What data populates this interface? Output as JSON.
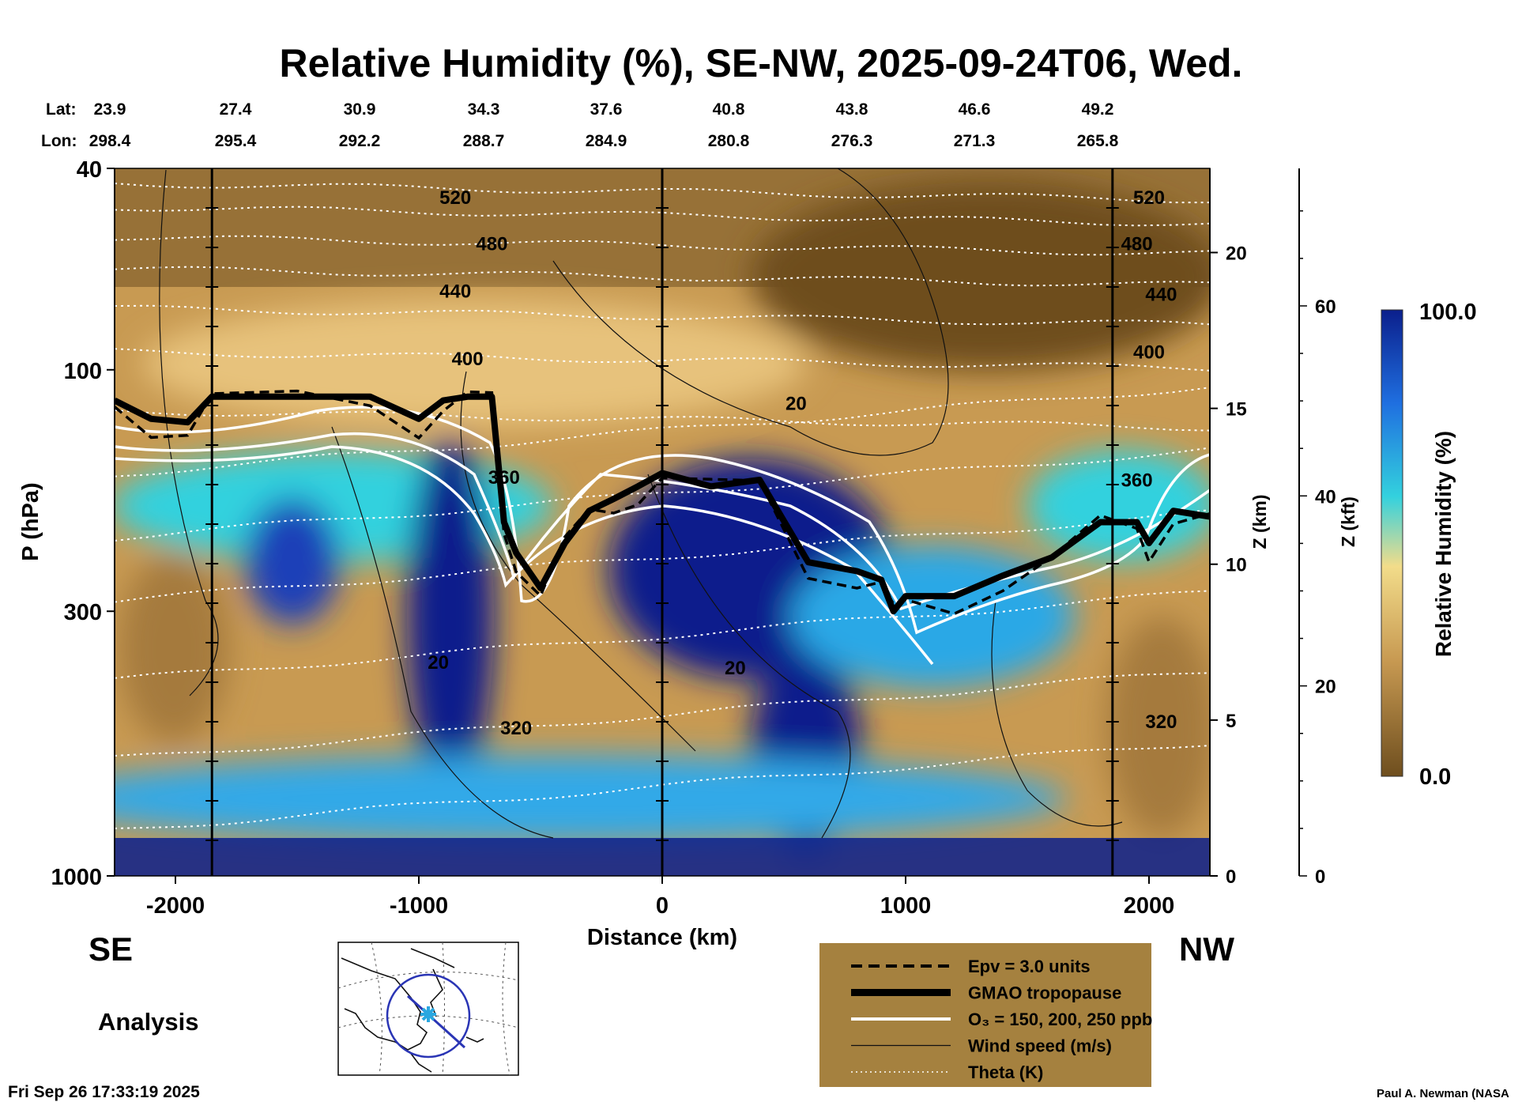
{
  "colors": {
    "rh_dry": "#6e4e1e",
    "rh_tan": "#c89a52",
    "rh_light": "#e7c27b",
    "rh_cyan": "#33d1de",
    "rh_mid": "#1f6fe0",
    "rh_wet": "#0b1f8c",
    "legend_bg": "#a5813f",
    "map_circle": "#2a35b5",
    "map_marker": "#2aa7e0"
  },
  "header": {
    "title": "Relative Humidity (%), SE-NW, 2025-09-24T06, Wed.",
    "lat_label": "Lat:",
    "lon_label": "Lon:",
    "lat": [
      "23.9",
      "27.4",
      "30.9",
      "34.3",
      "37.6",
      "40.8",
      "43.8",
      "46.6",
      "49.2"
    ],
    "lon": [
      "298.4",
      "295.4",
      "292.2",
      "288.7",
      "284.9",
      "280.8",
      "276.3",
      "271.3",
      "265.8"
    ]
  },
  "footer": {
    "left_dir": "SE",
    "right_dir": "NW",
    "analysis": "Analysis",
    "timestamp": "Fri Sep 26 17:33:19 2025",
    "credit": "Paul A. Newman (NASA"
  },
  "legend": {
    "items": [
      {
        "label": "Epv = 3.0 units",
        "style": "dashed"
      },
      {
        "label": "GMAO tropopause",
        "style": "thick"
      },
      {
        "label": "O₃ = 150, 200, 250 ppb",
        "style": "white"
      },
      {
        "label": "Wind speed (m/s)",
        "style": "thin"
      },
      {
        "label": "Theta (K)",
        "style": "dotted"
      }
    ]
  },
  "colorbar": {
    "label": "Relative Humidity (%)",
    "max_label": "100.0",
    "min_label": "0.0"
  },
  "chart_data": {
    "type": "heatmap",
    "title": "Relative Humidity (%), SE-NW, 2025-09-24T06, Wed.",
    "xlabel": "Distance (km)",
    "ylabel": "P (hPa)",
    "y2label": "Z (km)",
    "y3label": "Z (kft)",
    "xlim": [
      -2250,
      2250
    ],
    "ylim": [
      1000,
      40
    ],
    "y_scale": "log",
    "x_ticks": [
      -2000,
      -1000,
      0,
      1000,
      2000
    ],
    "y_ticks": [
      1000,
      300,
      100,
      40
    ],
    "z_km_ticks": [
      0,
      5,
      10,
      15,
      20
    ],
    "z_kft_ticks": [
      0,
      20,
      40,
      60
    ],
    "vertical_markers_km": [
      -1850,
      0,
      1850
    ],
    "colorbar_range": [
      0,
      100
    ],
    "tropopause_hpa": {
      "x": [
        -2250,
        -2100,
        -1950,
        -1850,
        -1500,
        -1200,
        -1000,
        -900,
        -800,
        -700,
        -650,
        -600,
        -500,
        -400,
        -300,
        -200,
        -100,
        0,
        200,
        400,
        600,
        800,
        900,
        950,
        1000,
        1200,
        1400,
        1600,
        1800,
        1950,
        2000,
        2100,
        2250
      ],
      "y": [
        115,
        125,
        127,
        113,
        113,
        113,
        125,
        115,
        113,
        113,
        200,
        230,
        270,
        220,
        190,
        180,
        170,
        160,
        170,
        165,
        240,
        250,
        260,
        300,
        280,
        280,
        255,
        235,
        200,
        200,
        220,
        190,
        195
      ]
    },
    "theta_labels": [
      {
        "value": "520",
        "x": -850,
        "p": 47
      },
      {
        "value": "480",
        "x": -700,
        "p": 58
      },
      {
        "value": "440",
        "x": -850,
        "p": 72
      },
      {
        "value": "400",
        "x": -800,
        "p": 98
      },
      {
        "value": "360",
        "x": -650,
        "p": 168
      },
      {
        "value": "320",
        "x": -600,
        "p": 525
      },
      {
        "value": "520",
        "x": 2000,
        "p": 47
      },
      {
        "value": "480",
        "x": 1950,
        "p": 58
      },
      {
        "value": "440",
        "x": 2050,
        "p": 73
      },
      {
        "value": "400",
        "x": 2000,
        "p": 95
      },
      {
        "value": "360",
        "x": 1950,
        "p": 170
      },
      {
        "value": "320",
        "x": 2050,
        "p": 510
      }
    ],
    "wind_labels": [
      {
        "value": "20",
        "x": 550,
        "p": 120
      },
      {
        "value": "20",
        "x": -920,
        "p": 390
      },
      {
        "value": "20",
        "x": 300,
        "p": 400
      }
    ]
  }
}
